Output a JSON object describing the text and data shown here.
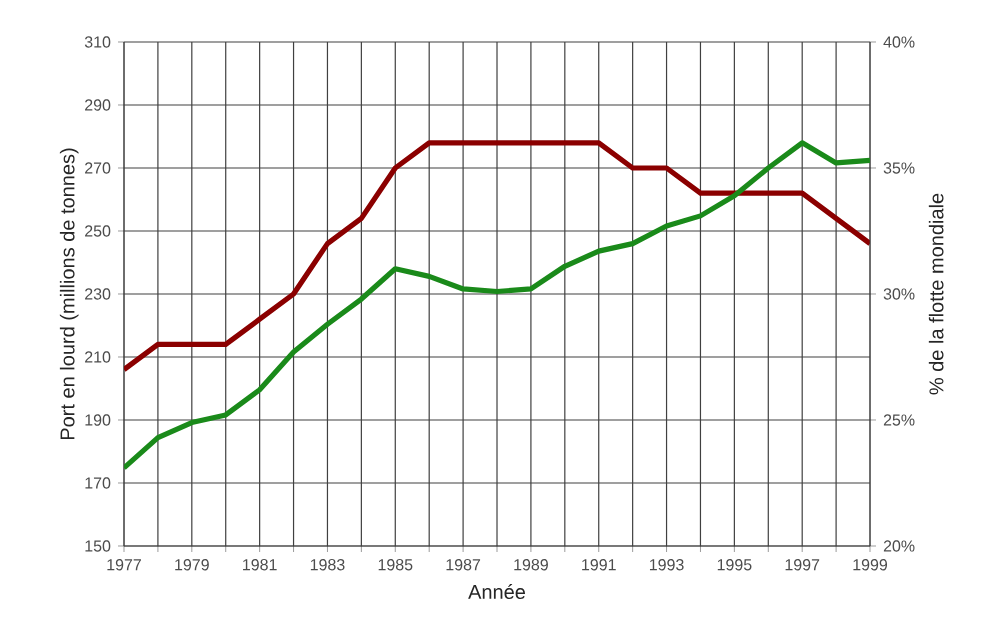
{
  "chart_data": {
    "type": "line",
    "xlabel": "Année",
    "ylabel": "Port en lourd (millions de tonnes)",
    "y2label": "% de la flotte mondiale",
    "x": [
      1977,
      1978,
      1979,
      1980,
      1981,
      1982,
      1983,
      1984,
      1985,
      1986,
      1987,
      1988,
      1989,
      1990,
      1991,
      1992,
      1993,
      1994,
      1995,
      1996,
      1997,
      1998,
      1999
    ],
    "series": [
      {
        "color": "#8b0000",
        "axis": "y",
        "values": [
          206,
          214,
          214,
          214,
          222,
          230,
          246,
          254,
          270,
          278,
          278,
          278,
          278,
          278,
          278,
          270,
          270,
          262,
          262,
          262,
          262,
          254,
          246
        ]
      },
      {
        "color": "#1a8a1a",
        "axis": "y2",
        "values": [
          23.1,
          24.3,
          24.9,
          25.2,
          26.2,
          27.7,
          28.8,
          29.8,
          31.0,
          30.7,
          30.2,
          30.1,
          30.2,
          31.1,
          31.7,
          32.0,
          32.7,
          33.1,
          33.9,
          35.0,
          36.0,
          35.2,
          35.3
        ]
      }
    ],
    "xlim": [
      1977,
      1999
    ],
    "xticks": [
      1977,
      {
        "value": 1978,
        "label": null
      },
      1979,
      {
        "value": 1980,
        "label": null
      },
      1981,
      {
        "value": 1982,
        "label": null
      },
      1983,
      {
        "value": 1984,
        "label": null
      },
      1985,
      {
        "value": 1986,
        "label": null
      },
      1987,
      {
        "value": 1988,
        "label": null
      },
      1989,
      {
        "value": 1990,
        "label": null
      },
      1991,
      {
        "value": 1992,
        "label": null
      },
      1993,
      {
        "value": 1994,
        "label": null
      },
      1995,
      {
        "value": 1996,
        "label": null
      },
      1997,
      {
        "value": 1998,
        "label": null
      },
      1999
    ],
    "ylim": [
      150,
      310
    ],
    "yticks": [
      150,
      170,
      190,
      210,
      230,
      250,
      270,
      290,
      310
    ],
    "y2lim": [
      20,
      40
    ],
    "y2ticks": [
      {
        "value": 20,
        "label": "20%"
      },
      {
        "value": 25,
        "label": "25%"
      },
      {
        "value": 30,
        "label": "30%"
      },
      {
        "value": 35,
        "label": "35%"
      },
      {
        "value": 40,
        "label": "40%"
      }
    ],
    "grid": true
  }
}
